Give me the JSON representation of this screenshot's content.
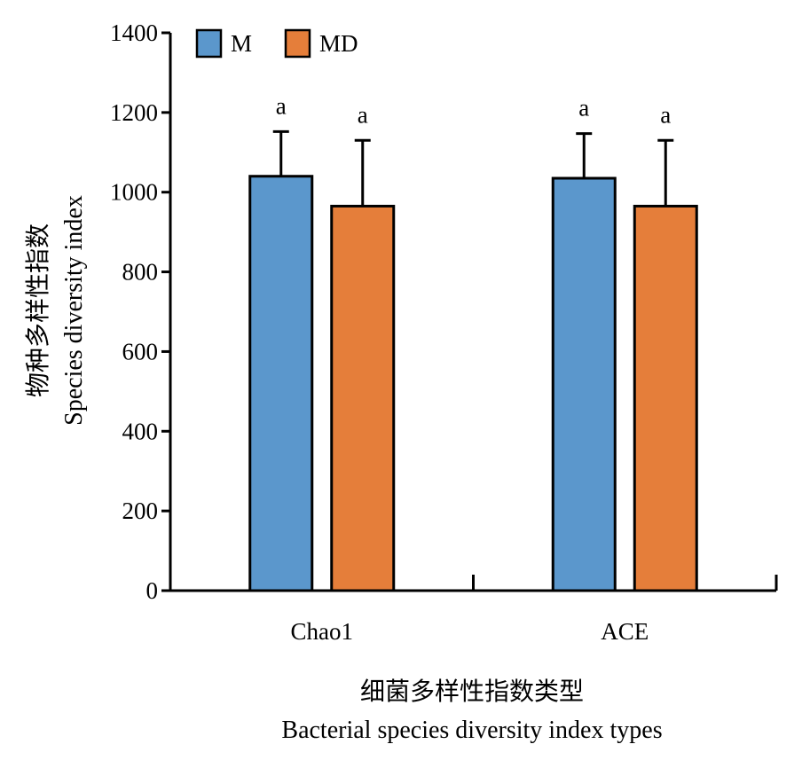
{
  "chart_data": {
    "type": "bar",
    "categories": [
      "Chao1",
      "ACE"
    ],
    "series": [
      {
        "name": "M",
        "color": "#5b97cc",
        "values": [
          1040,
          1035
        ],
        "errors": [
          112,
          112
        ],
        "significance": [
          "a",
          "a"
        ]
      },
      {
        "name": "MD",
        "color": "#e57e3a",
        "values": [
          965,
          965
        ],
        "errors": [
          165,
          165
        ],
        "significance": [
          "a",
          "a"
        ]
      }
    ],
    "xlabel_cn": "细菌多样性指数类型",
    "xlabel_en": "Bacterial species diversity index types",
    "ylabel_cn": "物种多样性指数",
    "ylabel_en": "Species diversity index",
    "ylim": [
      0,
      1400
    ],
    "yticks": [
      0,
      200,
      400,
      600,
      800,
      1000,
      1200,
      1400
    ],
    "legend_position": "top-left",
    "grid": false
  }
}
